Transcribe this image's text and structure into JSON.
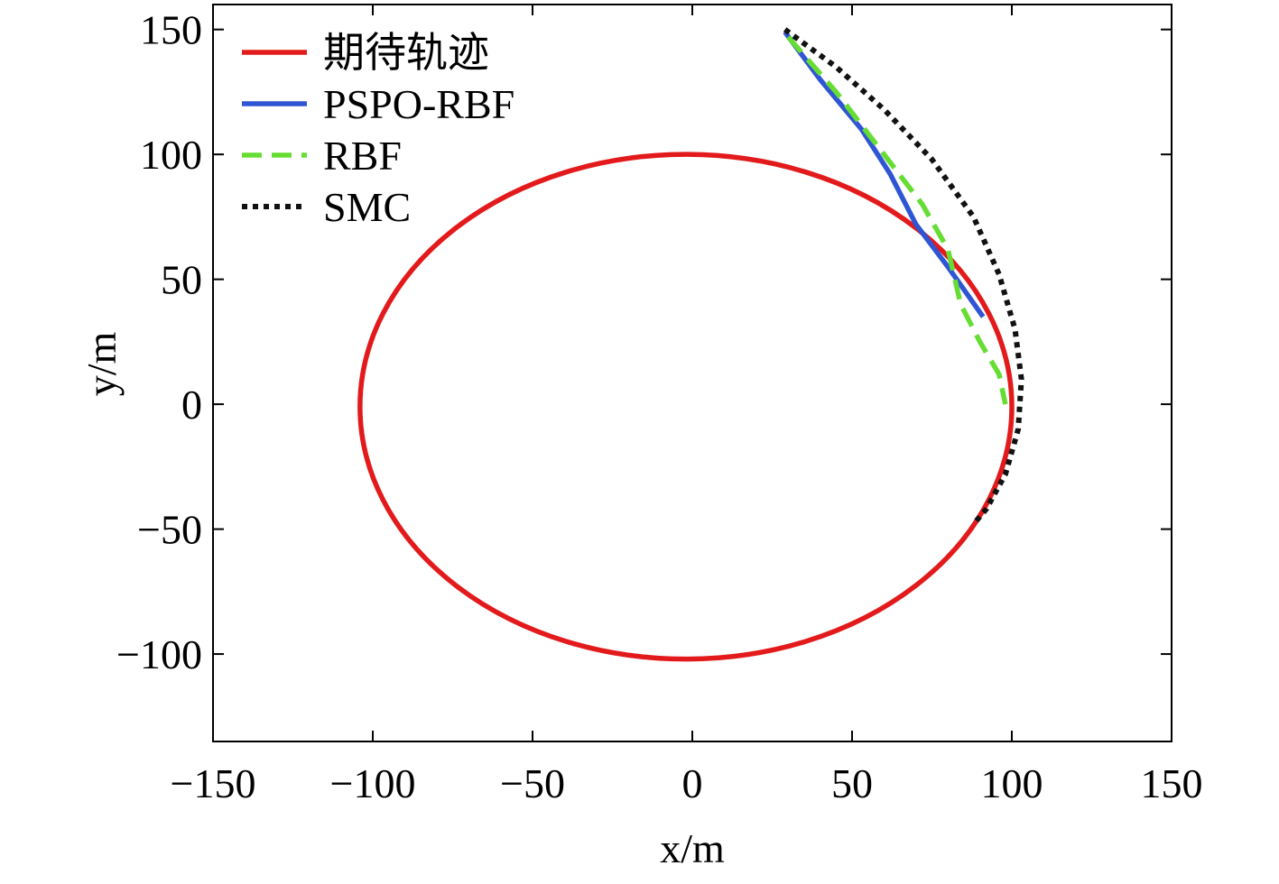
{
  "chart_data": {
    "type": "line",
    "xlabel": "x/m",
    "ylabel": "y/m",
    "xlim": [
      -150,
      150
    ],
    "ylim": [
      -135,
      160
    ],
    "xticks": [
      -150,
      -100,
      -50,
      0,
      50,
      100,
      150
    ],
    "yticks": [
      -100,
      -50,
      0,
      50,
      100,
      150
    ],
    "xtick_labels": [
      "−150",
      "−100",
      "−50",
      "0",
      "50",
      "100",
      "150"
    ],
    "ytick_labels": [
      "−100",
      "−50",
      "0",
      "50",
      "100",
      "150"
    ],
    "grid": false,
    "legend_position": "top-left",
    "series": [
      {
        "name": "期待轨迹",
        "color": "#e31a1c",
        "style": "solid",
        "shape": "ellipse",
        "center": [
          -2,
          -1
        ],
        "radius_x": 102,
        "radius_y": 101
      },
      {
        "name": "PSPO-RBF",
        "color": "#2f55d4",
        "style": "solid",
        "x": [
          29,
          40,
          53,
          62,
          70,
          80,
          91
        ],
        "y": [
          149,
          130,
          110,
          92,
          72,
          55,
          35
        ]
      },
      {
        "name": "RBF",
        "color": "#66dd33",
        "style": "dashed",
        "x": [
          30,
          45,
          60,
          72,
          80,
          84,
          90,
          96,
          98
        ],
        "y": [
          147,
          125,
          100,
          80,
          62,
          40,
          25,
          12,
          0
        ]
      },
      {
        "name": "SMC",
        "color": "#111111",
        "style": "dotted",
        "x": [
          29,
          45,
          60,
          75,
          88,
          96,
          101,
          103,
          102,
          98,
          92,
          88
        ],
        "y": [
          150,
          135,
          118,
          98,
          75,
          52,
          30,
          10,
          -10,
          -28,
          -42,
          -48
        ]
      }
    ]
  }
}
